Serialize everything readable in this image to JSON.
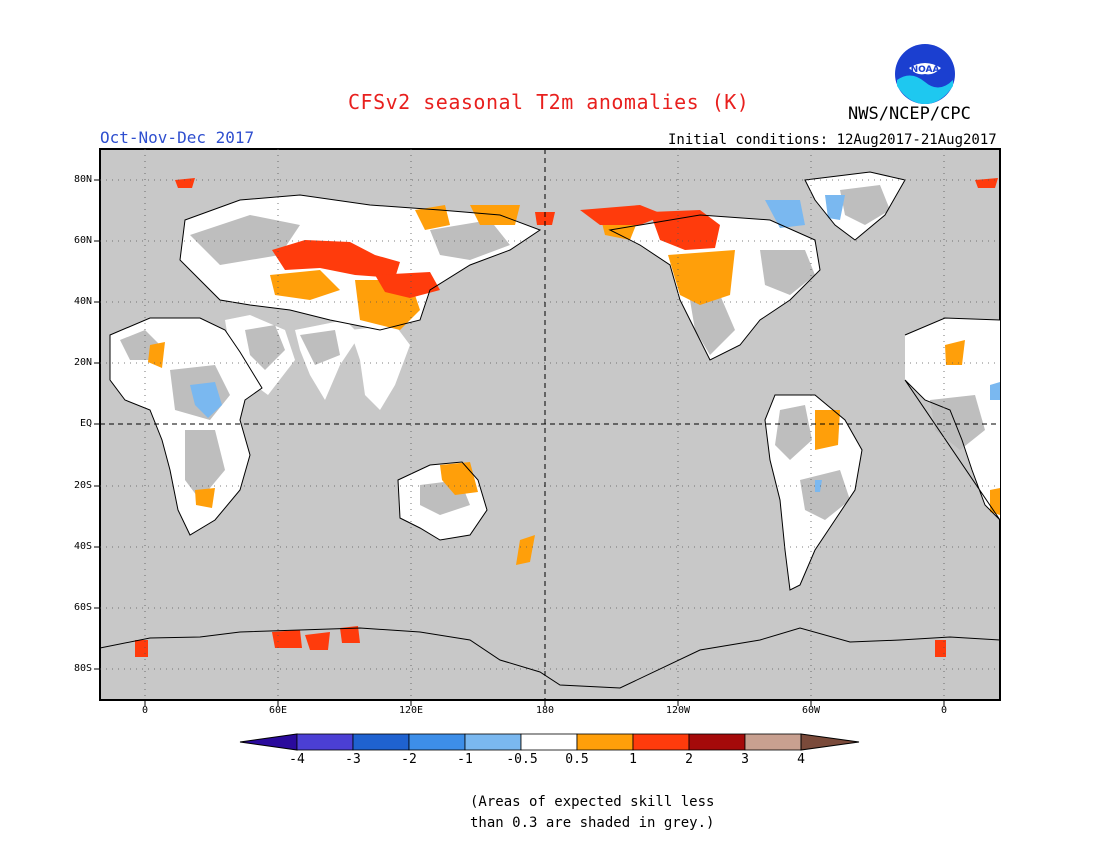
{
  "title": "CFSv2 seasonal T2m anomalies (K)",
  "agency": "NWS/NCEP/CPC",
  "logo_text": "NOAA",
  "season": "Oct-Nov-Dec 2017",
  "initial_conditions": "Initial conditions: 12Aug2017-21Aug2017",
  "lat_labels": [
    "80N",
    "60N",
    "40N",
    "20N",
    "EQ",
    "20S",
    "40S",
    "60S",
    "80S"
  ],
  "lon_labels": [
    "0",
    "60E",
    "120E",
    "180",
    "120W",
    "60W",
    "0"
  ],
  "colorbar": {
    "labels": [
      "-4",
      "-3",
      "-2",
      "-1",
      "-0.5",
      "0.5",
      "1",
      "2",
      "3",
      "4"
    ],
    "colors": [
      "#2a0a9c",
      "#4b3fd4",
      "#1f62d0",
      "#3d8ee8",
      "#7ab8f0",
      "#ffffff",
      "#ff9f0a",
      "#ff3b0c",
      "#a50a0a",
      "#c8a090",
      "#7a4a3a"
    ]
  },
  "note_lines": [
    "(Areas of expected skill less",
    "than 0.3 are shaded in grey.)"
  ],
  "colors": {
    "title": "#e8201e",
    "season": "#2f4fcf",
    "ocean": "#c8c8c8",
    "no_skill": "#bebebe",
    "neutral": "#ffffff",
    "warm_1": "#ff9f0a",
    "warm_2": "#ff3b0c",
    "cool_1": "#7ab8f0"
  }
}
